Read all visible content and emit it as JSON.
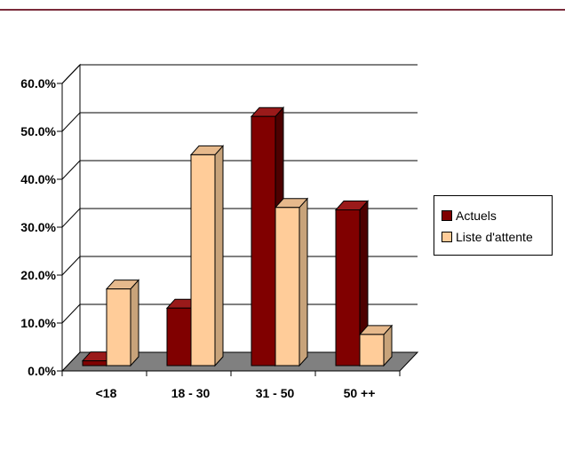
{
  "chart_data": {
    "type": "bar",
    "categories": [
      "<18",
      "18 - 30",
      "31 - 50",
      "50 ++"
    ],
    "series": [
      {
        "name": "Actuels",
        "values": [
          1.0,
          12.0,
          52.0,
          32.5
        ],
        "color": "#800000",
        "side_color": "#4d0000",
        "top_color": "#9a1a1a"
      },
      {
        "name": "Liste d'attente",
        "values": [
          16.0,
          44.0,
          33.0,
          6.5
        ],
        "color": "#ffcc99",
        "side_color": "#c8a37a",
        "top_color": "#e6b98c"
      }
    ],
    "ylim": [
      0,
      60
    ],
    "yticks": [
      "0.0%",
      "10.0%",
      "20.0%",
      "30.0%",
      "40.0%",
      "50.0%",
      "60.0%"
    ],
    "ytick_values": [
      0,
      10,
      20,
      30,
      40,
      50,
      60
    ],
    "grid": true,
    "legend": "right",
    "floor_color": "#808080",
    "title": "",
    "xlabel": "",
    "ylabel": ""
  }
}
